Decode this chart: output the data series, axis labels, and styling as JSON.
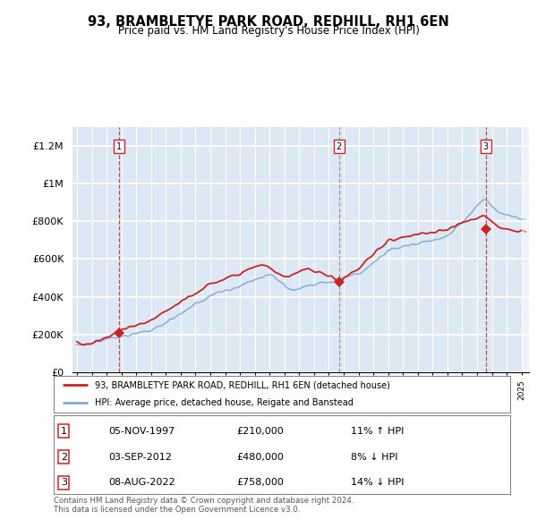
{
  "title": "93, BRAMBLETYE PARK ROAD, REDHILL, RH1 6EN",
  "subtitle": "Price paid vs. HM Land Registry's House Price Index (HPI)",
  "sale_dates_str": [
    "05-NOV-1997",
    "03-SEP-2012",
    "08-AUG-2022"
  ],
  "sale_years": [
    1997.85,
    2012.67,
    2022.59
  ],
  "sale_prices": [
    210000,
    480000,
    758000
  ],
  "sale_labels": [
    "1",
    "2",
    "3"
  ],
  "sale_vline_styles": [
    "dashed_red",
    "dashed_gray",
    "dashed_red"
  ],
  "legend_red": "93, BRAMBLETYE PARK ROAD, REDHILL, RH1 6EN (detached house)",
  "legend_blue": "HPI: Average price, detached house, Reigate and Banstead",
  "footer": "Contains HM Land Registry data © Crown copyright and database right 2024.\nThis data is licensed under the Open Government Licence v3.0.",
  "bg_color": "#dce9f5",
  "grid_color": "#ffffff",
  "red_color": "#cc2222",
  "blue_color": "#88aacc",
  "ylim": [
    0,
    1300000
  ],
  "yticks": [
    0,
    200000,
    400000,
    600000,
    800000,
    1000000,
    1200000
  ],
  "ytick_labels": [
    "£0",
    "£200K",
    "£400K",
    "£600K",
    "£800K",
    "£1M",
    "£1.2M"
  ],
  "table_rows": [
    [
      "1",
      "05-NOV-1997",
      "£210,000",
      "11% ↑ HPI"
    ],
    [
      "2",
      "03-SEP-2012",
      "£480,000",
      "8% ↓ HPI"
    ],
    [
      "3",
      "08-AUG-2022",
      "£758,000",
      "14% ↓ HPI"
    ]
  ]
}
